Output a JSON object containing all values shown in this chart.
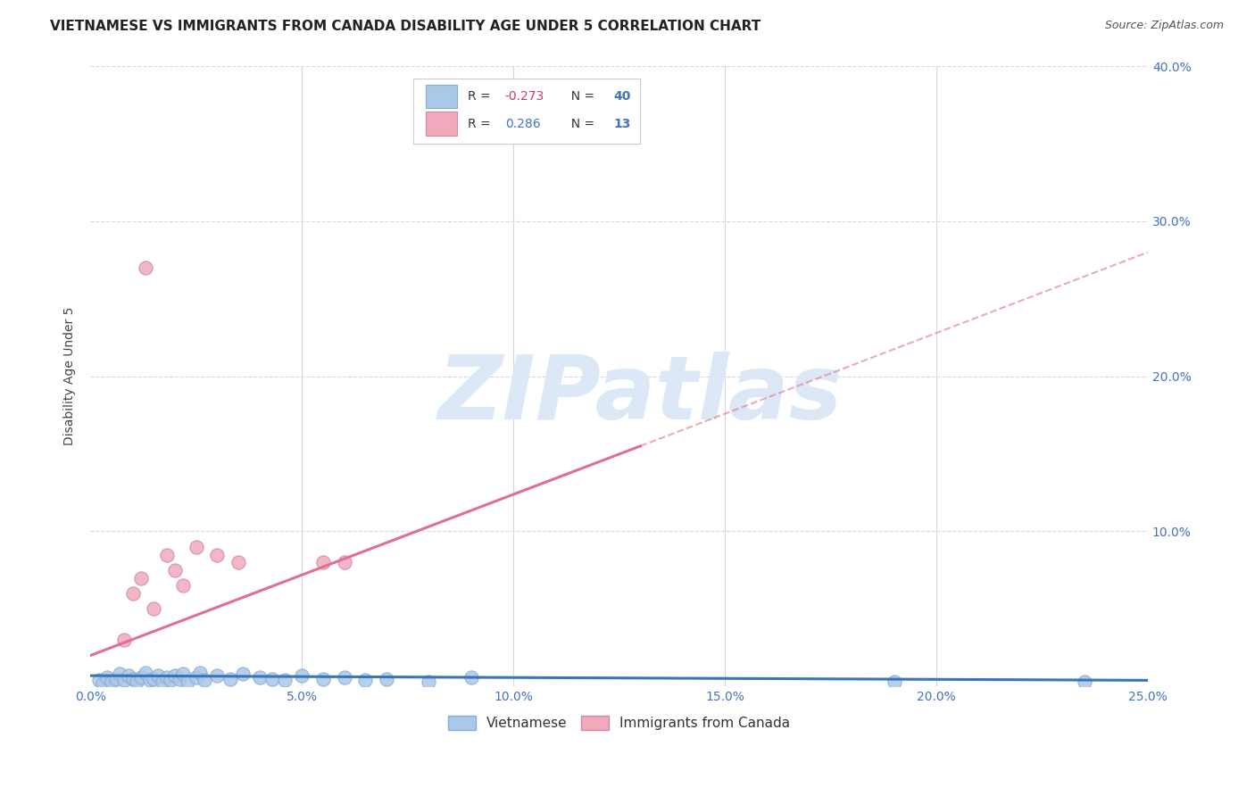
{
  "title": "VIETNAMESE VS IMMIGRANTS FROM CANADA DISABILITY AGE UNDER 5 CORRELATION CHART",
  "source": "Source: ZipAtlas.com",
  "ylabel": "Disability Age Under 5",
  "xlim": [
    0.0,
    0.25
  ],
  "ylim": [
    0.0,
    0.4
  ],
  "xticks": [
    0.0,
    0.05,
    0.1,
    0.15,
    0.2,
    0.25
  ],
  "yticks": [
    0.0,
    0.1,
    0.2,
    0.3,
    0.4
  ],
  "xtick_labels": [
    "0.0%",
    "5.0%",
    "10.0%",
    "15.0%",
    "20.0%",
    "25.0%"
  ],
  "right_ytick_labels": [
    "",
    "10.0%",
    "20.0%",
    "30.0%",
    "40.0%"
  ],
  "vietnamese_scatter": [
    [
      0.002,
      0.004
    ],
    [
      0.003,
      0.002
    ],
    [
      0.004,
      0.006
    ],
    [
      0.005,
      0.003
    ],
    [
      0.006,
      0.005
    ],
    [
      0.007,
      0.008
    ],
    [
      0.008,
      0.004
    ],
    [
      0.009,
      0.007
    ],
    [
      0.01,
      0.005
    ],
    [
      0.011,
      0.003
    ],
    [
      0.012,
      0.006
    ],
    [
      0.013,
      0.009
    ],
    [
      0.014,
      0.004
    ],
    [
      0.015,
      0.005
    ],
    [
      0.016,
      0.007
    ],
    [
      0.017,
      0.003
    ],
    [
      0.018,
      0.006
    ],
    [
      0.019,
      0.004
    ],
    [
      0.02,
      0.007
    ],
    [
      0.021,
      0.005
    ],
    [
      0.022,
      0.008
    ],
    [
      0.023,
      0.003
    ],
    [
      0.025,
      0.006
    ],
    [
      0.026,
      0.009
    ],
    [
      0.027,
      0.004
    ],
    [
      0.03,
      0.007
    ],
    [
      0.033,
      0.005
    ],
    [
      0.036,
      0.008
    ],
    [
      0.04,
      0.006
    ],
    [
      0.043,
      0.005
    ],
    [
      0.046,
      0.004
    ],
    [
      0.05,
      0.007
    ],
    [
      0.055,
      0.005
    ],
    [
      0.06,
      0.006
    ],
    [
      0.065,
      0.004
    ],
    [
      0.07,
      0.005
    ],
    [
      0.08,
      0.003
    ],
    [
      0.09,
      0.006
    ],
    [
      0.19,
      0.003
    ],
    [
      0.235,
      0.003
    ]
  ],
  "canada_scatter": [
    [
      0.008,
      0.03
    ],
    [
      0.01,
      0.06
    ],
    [
      0.012,
      0.07
    ],
    [
      0.015,
      0.05
    ],
    [
      0.018,
      0.085
    ],
    [
      0.02,
      0.075
    ],
    [
      0.022,
      0.065
    ],
    [
      0.025,
      0.09
    ],
    [
      0.03,
      0.085
    ],
    [
      0.035,
      0.08
    ],
    [
      0.055,
      0.08
    ],
    [
      0.06,
      0.08
    ],
    [
      0.013,
      0.27
    ]
  ],
  "blue_line": {
    "x0": 0.0,
    "y0": 0.007,
    "x1": 0.25,
    "y1": 0.004
  },
  "pink_line_solid": {
    "x0": 0.0,
    "y0": 0.02,
    "x1": 0.13,
    "y1": 0.155
  },
  "pink_line_dashed": {
    "x0": 0.13,
    "y0": 0.155,
    "x1": 0.25,
    "y1": 0.28
  },
  "blue_line_color": "#3a75b5",
  "pink_line_color": "#e07090",
  "blue_scatter_color": "#aac8e8",
  "pink_scatter_color": "#f0aabb",
  "scatter_size": 120,
  "background_color": "#ffffff",
  "grid_color": "#d8d8d8",
  "watermark_text": "ZIPatlas",
  "watermark_color": "#dce8f5",
  "title_fontsize": 11,
  "axis_label_fontsize": 10,
  "tick_fontsize": 10,
  "source_fontsize": 9
}
